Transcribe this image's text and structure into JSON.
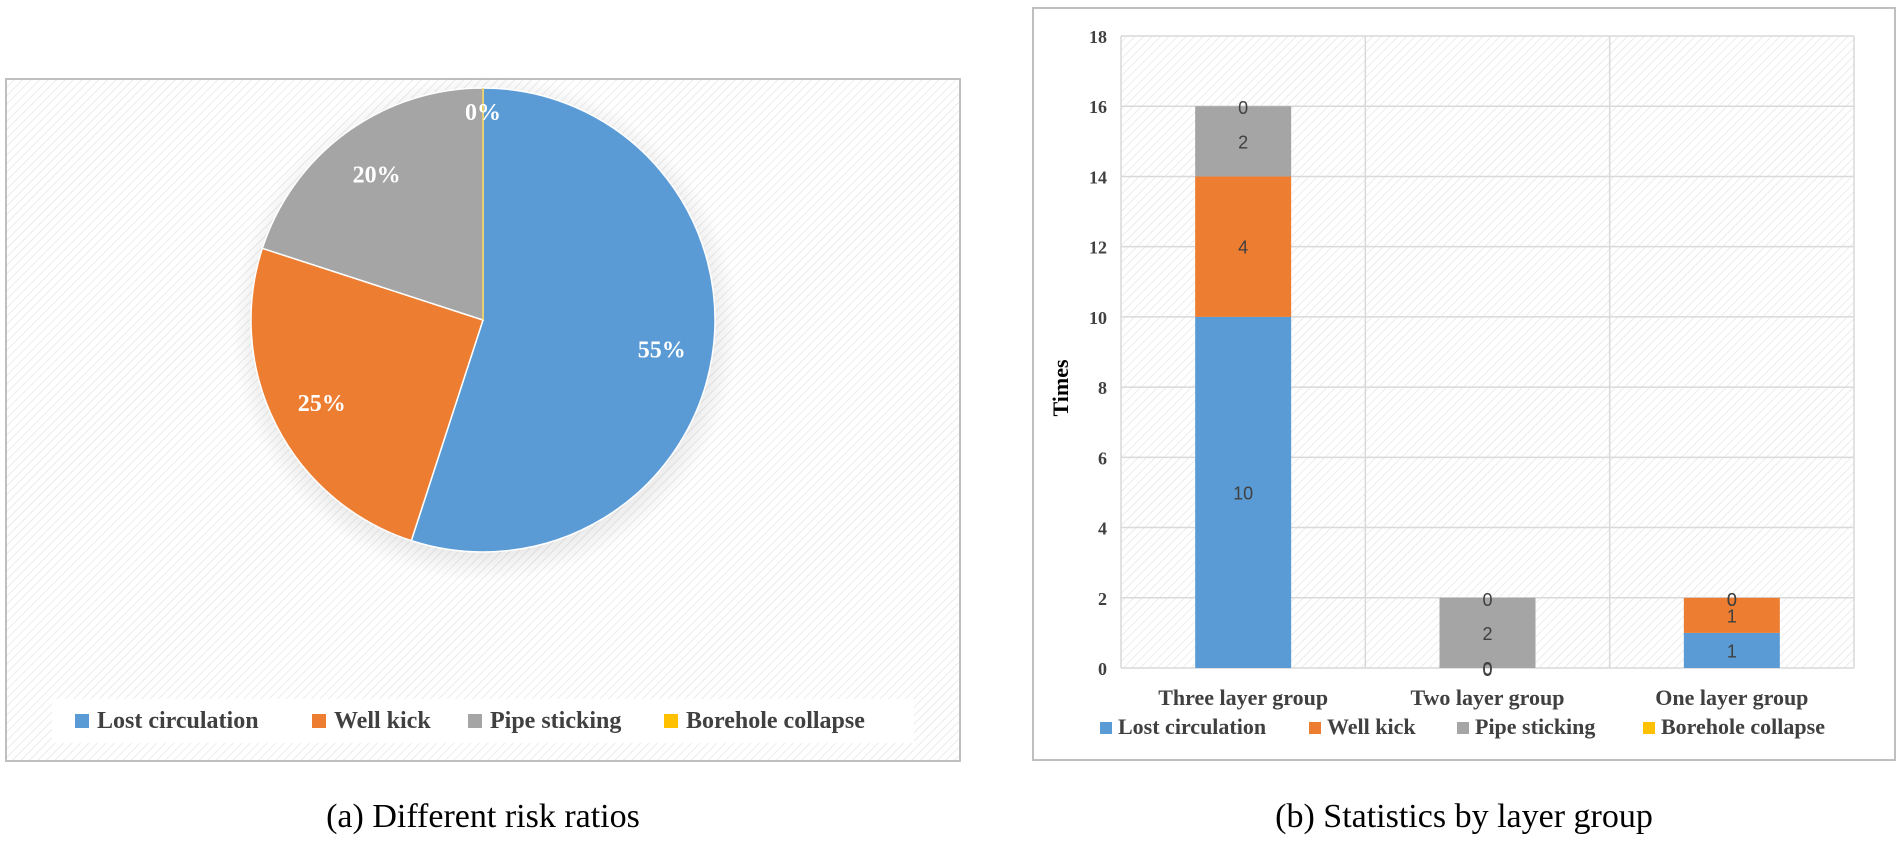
{
  "palette": {
    "lost_circulation": "#5b9bd5",
    "well_kick": "#ed7d31",
    "pipe_sticking": "#a5a5a5",
    "borehole_collapse": "#ffc000",
    "frame": "#bfbfbf",
    "grid": "#d9d9d9",
    "text": "#404040"
  },
  "chart_data": [
    {
      "type": "pie",
      "caption": "(a) Different risk ratios",
      "labels": [
        "Lost circulation",
        "Well kick",
        "Pipe sticking",
        "Borehole collapse"
      ],
      "values": [
        55,
        25,
        20,
        0
      ],
      "data_labels": [
        "55%",
        "25%",
        "20%",
        "0%"
      ],
      "legend": "bottom"
    },
    {
      "type": "bar",
      "stacked": true,
      "caption": "(b) Statistics by layer group",
      "categories": [
        "Three layer group",
        "Two layer group",
        "One layer group"
      ],
      "series": [
        {
          "name": "Lost circulation",
          "values": [
            10,
            0,
            1
          ]
        },
        {
          "name": "Well kick",
          "values": [
            4,
            0,
            1
          ]
        },
        {
          "name": "Pipe sticking",
          "values": [
            2,
            2,
            0
          ]
        },
        {
          "name": "Borehole collapse",
          "values": [
            0,
            0,
            0
          ]
        }
      ],
      "ylabel": "Times",
      "ylim": [
        0,
        18
      ],
      "yticks": [
        0,
        2,
        4,
        6,
        8,
        10,
        12,
        14,
        16,
        18
      ],
      "grid": true,
      "legend": "bottom"
    }
  ]
}
